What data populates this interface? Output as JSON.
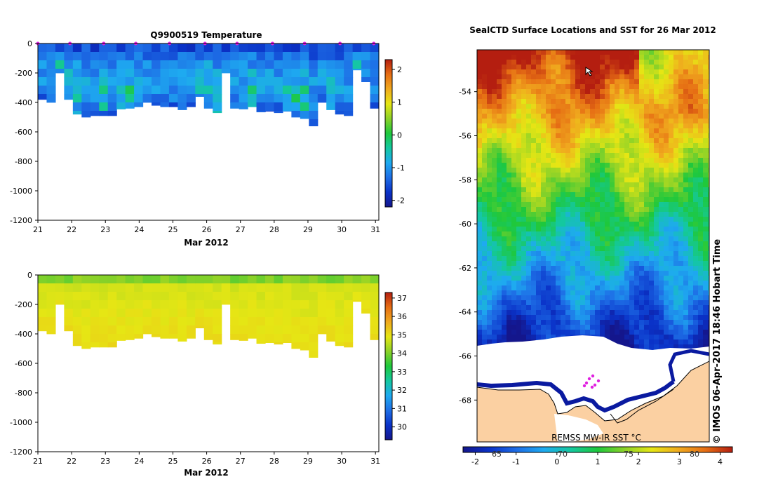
{
  "chart_data": [
    {
      "type": "heatmap",
      "title": "Q9900519  Temperature",
      "xlabel": "Mar 2012",
      "ylabel": "",
      "x_ticks": [
        "21",
        "22",
        "23",
        "24",
        "25",
        "26",
        "27",
        "28",
        "29",
        "30",
        "31"
      ],
      "x_range": [
        21,
        31.1
      ],
      "y_ticks": [
        "0",
        "-200",
        "-400",
        "-600",
        "-800",
        "-1000",
        "-1200"
      ],
      "y_range": [
        -1200,
        0
      ],
      "colorbar": {
        "ticks": [
          "2",
          "1",
          "0",
          "-1",
          "-2"
        ],
        "range": [
          -2.2,
          2.3
        ]
      },
      "marker_days": [
        21.0,
        21.95,
        22.95,
        23.9,
        24.9,
        25.95,
        26.9,
        27.95,
        28.9,
        29.95,
        30.95
      ],
      "profile_depths": [
        -380,
        -400,
        -200,
        -380,
        -480,
        -500,
        -490,
        -490,
        -490,
        -445,
        -440,
        -430,
        -400,
        -420,
        -430,
        -430,
        -450,
        -430,
        -360,
        -440,
        -470,
        -200,
        -440,
        -445,
        -430,
        -465,
        -460,
        -470,
        -460,
        -500,
        -510,
        -560,
        -400,
        -450,
        -480,
        -490,
        -180,
        -260,
        -440
      ]
    },
    {
      "type": "heatmap",
      "title": "",
      "xlabel": "Mar 2012",
      "ylabel": "",
      "x_ticks": [
        "21",
        "22",
        "23",
        "24",
        "25",
        "26",
        "27",
        "28",
        "29",
        "30",
        "31"
      ],
      "x_range": [
        21,
        31.1
      ],
      "y_ticks": [
        "0",
        "-200",
        "-400",
        "-600",
        "-800",
        "-1000",
        "-1200"
      ],
      "y_range": [
        -1200,
        0
      ],
      "colorbar": {
        "ticks": [
          "37",
          "36",
          "35",
          "34",
          "33",
          "32",
          "31",
          "30"
        ],
        "range": [
          29.3,
          37.3
        ]
      }
    },
    {
      "type": "heatmap",
      "title": "SealCTD Surface Locations and SST for 26 Mar 2012",
      "y_ticks": [
        "-54",
        "-56",
        "-58",
        "-60",
        "-62",
        "-64",
        "-66",
        "-68"
      ],
      "y_range": [
        -69.9,
        -52.1
      ],
      "colorbar": {
        "ticks": [
          "-2",
          "-1",
          "0",
          "1",
          "2",
          "3",
          "4"
        ],
        "range": [
          -2.3,
          4.3
        ]
      },
      "colorbar_overlay_labels": [
        "65",
        "70",
        "75",
        "80"
      ],
      "product_label": "REMSS MW-IR SST °C",
      "credit": "© IMOS 06-Apr-2017 18:46 Hobart Time"
    }
  ],
  "colors": {
    "land": "#fbd0a2",
    "ice": "#ffffff",
    "marker": "#e020e0",
    "colormap_temperature": [
      "#14168c",
      "#0a32c8",
      "#1e6ee6",
      "#1eaaf0",
      "#14c8a0",
      "#1ec83c",
      "#8cd228",
      "#e6e614",
      "#f0aa1e",
      "#e66e14",
      "#b41e10"
    ]
  }
}
